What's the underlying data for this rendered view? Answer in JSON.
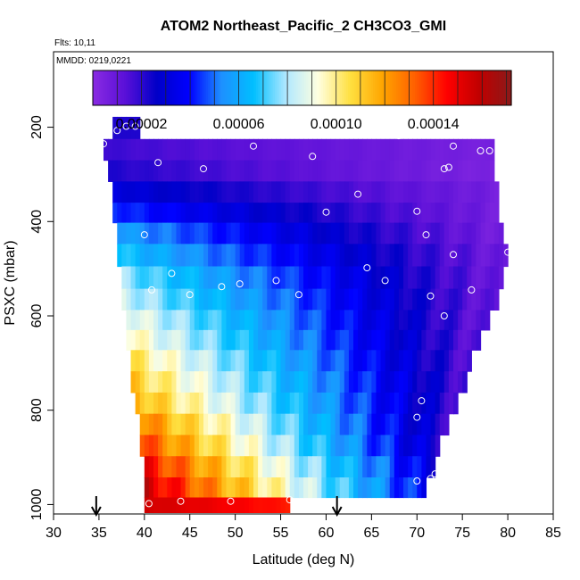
{
  "chart_data": {
    "type": "heatmap",
    "title": "ATOM2 Northeast_Pacific_2 CH3CO3_GMI",
    "flights_label": "Flts: 10,11",
    "mmdd_label": "MMDD: 0219,0221",
    "xlabel": "Latitude (deg N)",
    "ylabel": "PSXC (mbar)",
    "xlim": [
      30,
      85
    ],
    "ylim": [
      1020,
      40
    ],
    "x_ticks": [
      "30",
      "35",
      "40",
      "45",
      "50",
      "55",
      "60",
      "65",
      "70",
      "75",
      "80",
      "85"
    ],
    "y_ticks": [
      "200",
      "400",
      "600",
      "800",
      "1000"
    ],
    "colorbar": {
      "range": [
        0.0,
        0.000172
      ],
      "tick_values": [
        2e-05,
        6e-05,
        0.0001,
        0.00014
      ],
      "tick_labels": [
        "0.00002",
        "0.00006",
        "0.00010",
        "0.00014"
      ],
      "colors": [
        "#8a2be2",
        "#5a10d8",
        "#0000c8",
        "#0000ff",
        "#1e90ff",
        "#00bfff",
        "#b0e8ff",
        "#ffffe0",
        "#ffe040",
        "#ffa500",
        "#ff6000",
        "#ff0000",
        "#c00000",
        "#8b1a1a"
      ]
    },
    "field_rows": [
      {
        "p": 200,
        "lat_min": 36.5,
        "lat_max": 39.5,
        "v0": 2.2e-05,
        "v1": 2.2e-05
      },
      {
        "p": 250,
        "lat_min": 35.5,
        "lat_max": 78.5,
        "v0": 1.8e-05,
        "v1": 5e-06
      },
      {
        "p": 290,
        "lat_min": 36.0,
        "lat_max": 78.5,
        "v0": 2.2e-05,
        "v1": 4e-06
      },
      {
        "p": 340,
        "lat_min": 36.5,
        "lat_max": 79.0,
        "v0": 3.2e-05,
        "v1": 6e-06
      },
      {
        "p": 380,
        "lat_min": 36.5,
        "lat_max": 79.0,
        "v0": 4.5e-05,
        "v1": 6e-06
      },
      {
        "p": 425,
        "lat_min": 37.0,
        "lat_max": 79.5,
        "v0": 5.8e-05,
        "v1": 6e-06
      },
      {
        "p": 470,
        "lat_min": 37.0,
        "lat_max": 80.0,
        "v0": 6.8e-05,
        "v1": 7e-06
      },
      {
        "p": 520,
        "lat_min": 37.5,
        "lat_max": 79.5,
        "v0": 7.8e-05,
        "v1": 8e-06
      },
      {
        "p": 565,
        "lat_min": 37.5,
        "lat_max": 79.0,
        "v0": 8.5e-05,
        "v1": 9e-06
      },
      {
        "p": 610,
        "lat_min": 38.0,
        "lat_max": 78.0,
        "v0": 9.2e-05,
        "v1": 1e-05
      },
      {
        "p": 650,
        "lat_min": 38.0,
        "lat_max": 77.0,
        "v0": 9.8e-05,
        "v1": 1.2e-05
      },
      {
        "p": 695,
        "lat_min": 38.5,
        "lat_max": 76.0,
        "v0": 0.000105,
        "v1": 1.4e-05
      },
      {
        "p": 740,
        "lat_min": 38.5,
        "lat_max": 75.5,
        "v0": 0.000112,
        "v1": 1.6e-05
      },
      {
        "p": 785,
        "lat_min": 39.0,
        "lat_max": 74.5,
        "v0": 0.000118,
        "v1": 1.8e-05
      },
      {
        "p": 830,
        "lat_min": 39.5,
        "lat_max": 73.5,
        "v0": 0.000128,
        "v1": 2e-05
      },
      {
        "p": 875,
        "lat_min": 39.5,
        "lat_max": 72.5,
        "v0": 0.000138,
        "v1": 2.4e-05
      },
      {
        "p": 920,
        "lat_min": 40.0,
        "lat_max": 72.0,
        "v0": 0.000148,
        "v1": 3e-05
      },
      {
        "p": 965,
        "lat_min": 40.0,
        "lat_max": 71.0,
        "v0": 0.000158,
        "v1": 3.6e-05
      },
      {
        "p": 1005,
        "lat_min": 40.0,
        "lat_max": 56.0,
        "v0": 0.000156,
        "v1": 0.000142
      }
    ],
    "flight_points": [
      [
        35.5,
        235
      ],
      [
        37.0,
        207
      ],
      [
        38.0,
        198
      ],
      [
        39.0,
        198
      ],
      [
        41.5,
        275
      ],
      [
        46.5,
        288
      ],
      [
        52.0,
        240
      ],
      [
        58.5,
        262
      ],
      [
        68.0,
        218
      ],
      [
        73.0,
        288
      ],
      [
        73.5,
        285
      ],
      [
        74.0,
        240
      ],
      [
        77.0,
        250
      ],
      [
        78.0,
        250
      ],
      [
        63.5,
        342
      ],
      [
        60.0,
        380
      ],
      [
        70.0,
        378
      ],
      [
        71.0,
        428
      ],
      [
        74.0,
        470
      ],
      [
        80.0,
        465
      ],
      [
        40.0,
        428
      ],
      [
        43.0,
        510
      ],
      [
        40.8,
        545
      ],
      [
        45.0,
        555
      ],
      [
        48.5,
        538
      ],
      [
        50.5,
        532
      ],
      [
        54.5,
        525
      ],
      [
        57.0,
        555
      ],
      [
        64.5,
        498
      ],
      [
        66.5,
        525
      ],
      [
        71.5,
        558
      ],
      [
        73.0,
        600
      ],
      [
        76.0,
        545
      ],
      [
        70.5,
        780
      ],
      [
        70.0,
        815
      ],
      [
        70.0,
        950
      ],
      [
        71.5,
        945
      ],
      [
        72.0,
        935
      ],
      [
        40.5,
        998
      ],
      [
        44.0,
        993
      ],
      [
        49.5,
        993
      ],
      [
        56.0,
        990
      ]
    ],
    "arrows_lat": [
      34.7,
      61.2
    ]
  }
}
